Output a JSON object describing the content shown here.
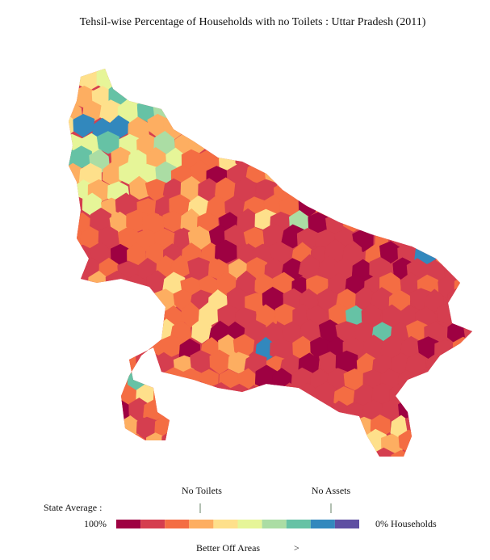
{
  "title": "Tehsil-wise Percentage of Households with no Toilets : Uttar Pradesh (2011)",
  "legend": {
    "markers": [
      "No Toilets",
      "No Assets"
    ],
    "state_average_label": "State Average :",
    "left_label": "100%",
    "right_label": "0% Households",
    "colors": [
      "#9e0142",
      "#d53e4f",
      "#f46d43",
      "#fdae61",
      "#fee08b",
      "#e6f598",
      "#abdda4",
      "#66c2a5",
      "#3288bd",
      "#5e4fa2"
    ]
  },
  "footer": {
    "label": "Better Off Areas",
    "arrow": ">"
  }
}
